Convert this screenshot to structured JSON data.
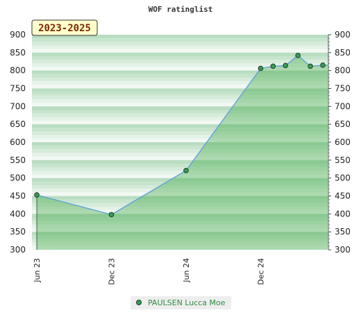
{
  "chart_data": {
    "type": "area",
    "title": "WOF ratinglist",
    "period_label": "2023-2025",
    "x_tick_labels": [
      "Jun 23",
      "Dec 23",
      "Jun 24",
      "Dec 24"
    ],
    "y_ticks": [
      300,
      350,
      400,
      450,
      500,
      550,
      600,
      650,
      700,
      750,
      800,
      850,
      900
    ],
    "ylim": [
      300,
      900
    ],
    "grid": true,
    "legend_position": "bottom-center",
    "series": [
      {
        "name": "PAULSEN Lucca Moe",
        "x": [
          "2023-06",
          "2023-12",
          "2024-06",
          "2024-12",
          "2025-01",
          "2025-02",
          "2025-03",
          "2025-04",
          "2025-05"
        ],
        "values": [
          453,
          398,
          521,
          806,
          812,
          814,
          842,
          812,
          815
        ]
      }
    ]
  },
  "colors": {
    "line": "#5aa0d8",
    "fill": "#4caf50",
    "marker": "#3a9a55",
    "badge_bg": "#ffffcc",
    "legend_bg": "#eeeeee"
  }
}
